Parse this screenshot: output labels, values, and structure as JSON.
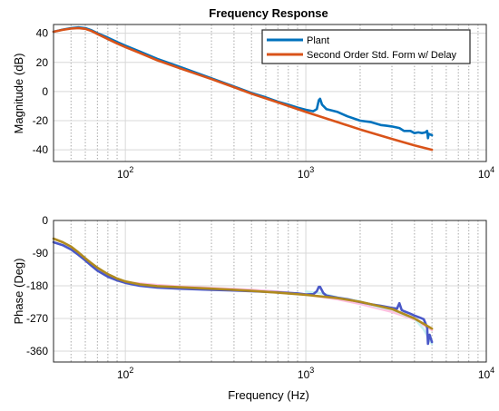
{
  "chart_data": [
    {
      "type": "line",
      "title": "Frequency Response",
      "xlabel": "",
      "ylabel": "Magnitude (dB)",
      "xscale": "log",
      "xlim": [
        40,
        10000
      ],
      "ylim": [
        -48,
        46
      ],
      "xticks": [
        100,
        1000,
        10000
      ],
      "xtick_labels": [
        "10^2",
        "10^3",
        "10^4"
      ],
      "yticks": [
        40,
        20,
        0,
        -20,
        -40
      ],
      "ytick_labels": [
        "40",
        "20",
        "0",
        "-20",
        "-40"
      ],
      "grid": true,
      "legend_position": "top-right",
      "series": [
        {
          "name": "Plant",
          "color": "#0072bd",
          "x": [
            40,
            45,
            50,
            55,
            60,
            65,
            70,
            80,
            90,
            100,
            120,
            150,
            200,
            300,
            400,
            500,
            600,
            700,
            800,
            900,
            1000,
            1100,
            1150,
            1180,
            1200,
            1230,
            1300,
            1500,
            1700,
            2000,
            2300,
            2600,
            2800,
            3000,
            3300,
            3500,
            3800,
            4000,
            4200,
            4400,
            4600,
            4700,
            4750,
            4800,
            5000
          ],
          "y": [
            41,
            42.5,
            43.5,
            44,
            43.5,
            42,
            40,
            37,
            34,
            31.5,
            27.5,
            22.5,
            17,
            9,
            3.5,
            -1,
            -4,
            -7,
            -9,
            -11,
            -12.5,
            -13.5,
            -12,
            -6,
            -5,
            -9,
            -12,
            -14,
            -17,
            -20,
            -21,
            -23,
            -23.5,
            -24,
            -25,
            -27,
            -27,
            -28.5,
            -28,
            -28.5,
            -28,
            -27,
            -32,
            -29,
            -30
          ]
        },
        {
          "name": "Second Order Std. Form w/ Delay",
          "color": "#d95319",
          "x": [
            40,
            45,
            50,
            55,
            60,
            65,
            70,
            80,
            90,
            100,
            120,
            150,
            200,
            300,
            400,
            500,
            700,
            1000,
            1500,
            2000,
            3000,
            4000,
            5000
          ],
          "y": [
            41,
            42.3,
            43.2,
            43.6,
            43,
            41.5,
            39.5,
            36,
            33,
            30.5,
            26.5,
            21.5,
            16,
            8.5,
            3,
            -1.5,
            -7.5,
            -14,
            -21,
            -26,
            -32.5,
            -37,
            -40
          ]
        }
      ]
    },
    {
      "type": "line",
      "title": "",
      "xlabel": "Frequency (Hz)",
      "ylabel": "Phase (Deg)",
      "xscale": "log",
      "xlim": [
        40,
        10000
      ],
      "ylim": [
        -390,
        0
      ],
      "xticks": [
        100,
        1000,
        10000
      ],
      "xtick_labels": [
        "10^2",
        "10^3",
        "10^4"
      ],
      "yticks": [
        0,
        -90,
        -180,
        -270,
        -360
      ],
      "ytick_labels": [
        "0",
        "-90",
        "-180",
        "-270",
        "-360"
      ],
      "grid": true,
      "series": [
        {
          "color": "#ffc0e0",
          "x": [
            100,
            150,
            200,
            300,
            500,
            700,
            1000,
            1500,
            2000,
            3000,
            4000,
            5000
          ],
          "y": [
            -170,
            -178,
            -182,
            -186,
            -191,
            -196,
            -204,
            -217,
            -230,
            -252,
            -273,
            -302
          ]
        },
        {
          "color": "#c8f0f0",
          "x": [
            1000,
            1200,
            1500,
            2000,
            2500,
            3000,
            3500,
            4000,
            4500,
            5000
          ],
          "y": [
            -196,
            -200,
            -212,
            -223,
            -238,
            -245,
            -260,
            -270,
            -300,
            -340
          ]
        },
        {
          "color": "#4a58c8",
          "x": [
            40,
            45,
            50,
            55,
            60,
            65,
            70,
            80,
            90,
            100,
            120,
            150,
            200,
            300,
            400,
            500,
            700,
            900,
            1000,
            1100,
            1150,
            1180,
            1200,
            1250,
            1300,
            1500,
            1700,
            2000,
            2300,
            2600,
            3000,
            3200,
            3300,
            3400,
            3500,
            3800,
            4000,
            4300,
            4500,
            4600,
            4700,
            4750,
            4800,
            4850,
            5000
          ],
          "y": [
            -60,
            -68,
            -80,
            -95,
            -110,
            -125,
            -138,
            -155,
            -165,
            -172,
            -180,
            -185,
            -188,
            -191,
            -193,
            -195,
            -198,
            -201,
            -204,
            -203,
            -195,
            -183,
            -183,
            -200,
            -207,
            -213,
            -217,
            -225,
            -231,
            -235,
            -241,
            -243,
            -228,
            -247,
            -250,
            -257,
            -262,
            -268,
            -272,
            -283,
            -295,
            -340,
            -325,
            -315,
            -335
          ]
        },
        {
          "color": "#b08a1e",
          "x": [
            40,
            45,
            50,
            55,
            60,
            65,
            70,
            80,
            90,
            100,
            120,
            150,
            200,
            300,
            400,
            500,
            700,
            1000,
            1500,
            2000,
            3000,
            4000,
            5000
          ],
          "y": [
            -50,
            -60,
            -72,
            -88,
            -104,
            -118,
            -130,
            -148,
            -160,
            -168,
            -176,
            -181,
            -184,
            -188,
            -191,
            -194,
            -199,
            -205,
            -214,
            -224,
            -244,
            -270,
            -298
          ]
        }
      ]
    }
  ],
  "colors": {
    "grid_major": "#d8d8d8",
    "grid_minor": "#a8a8a8",
    "axis": "#262626"
  }
}
